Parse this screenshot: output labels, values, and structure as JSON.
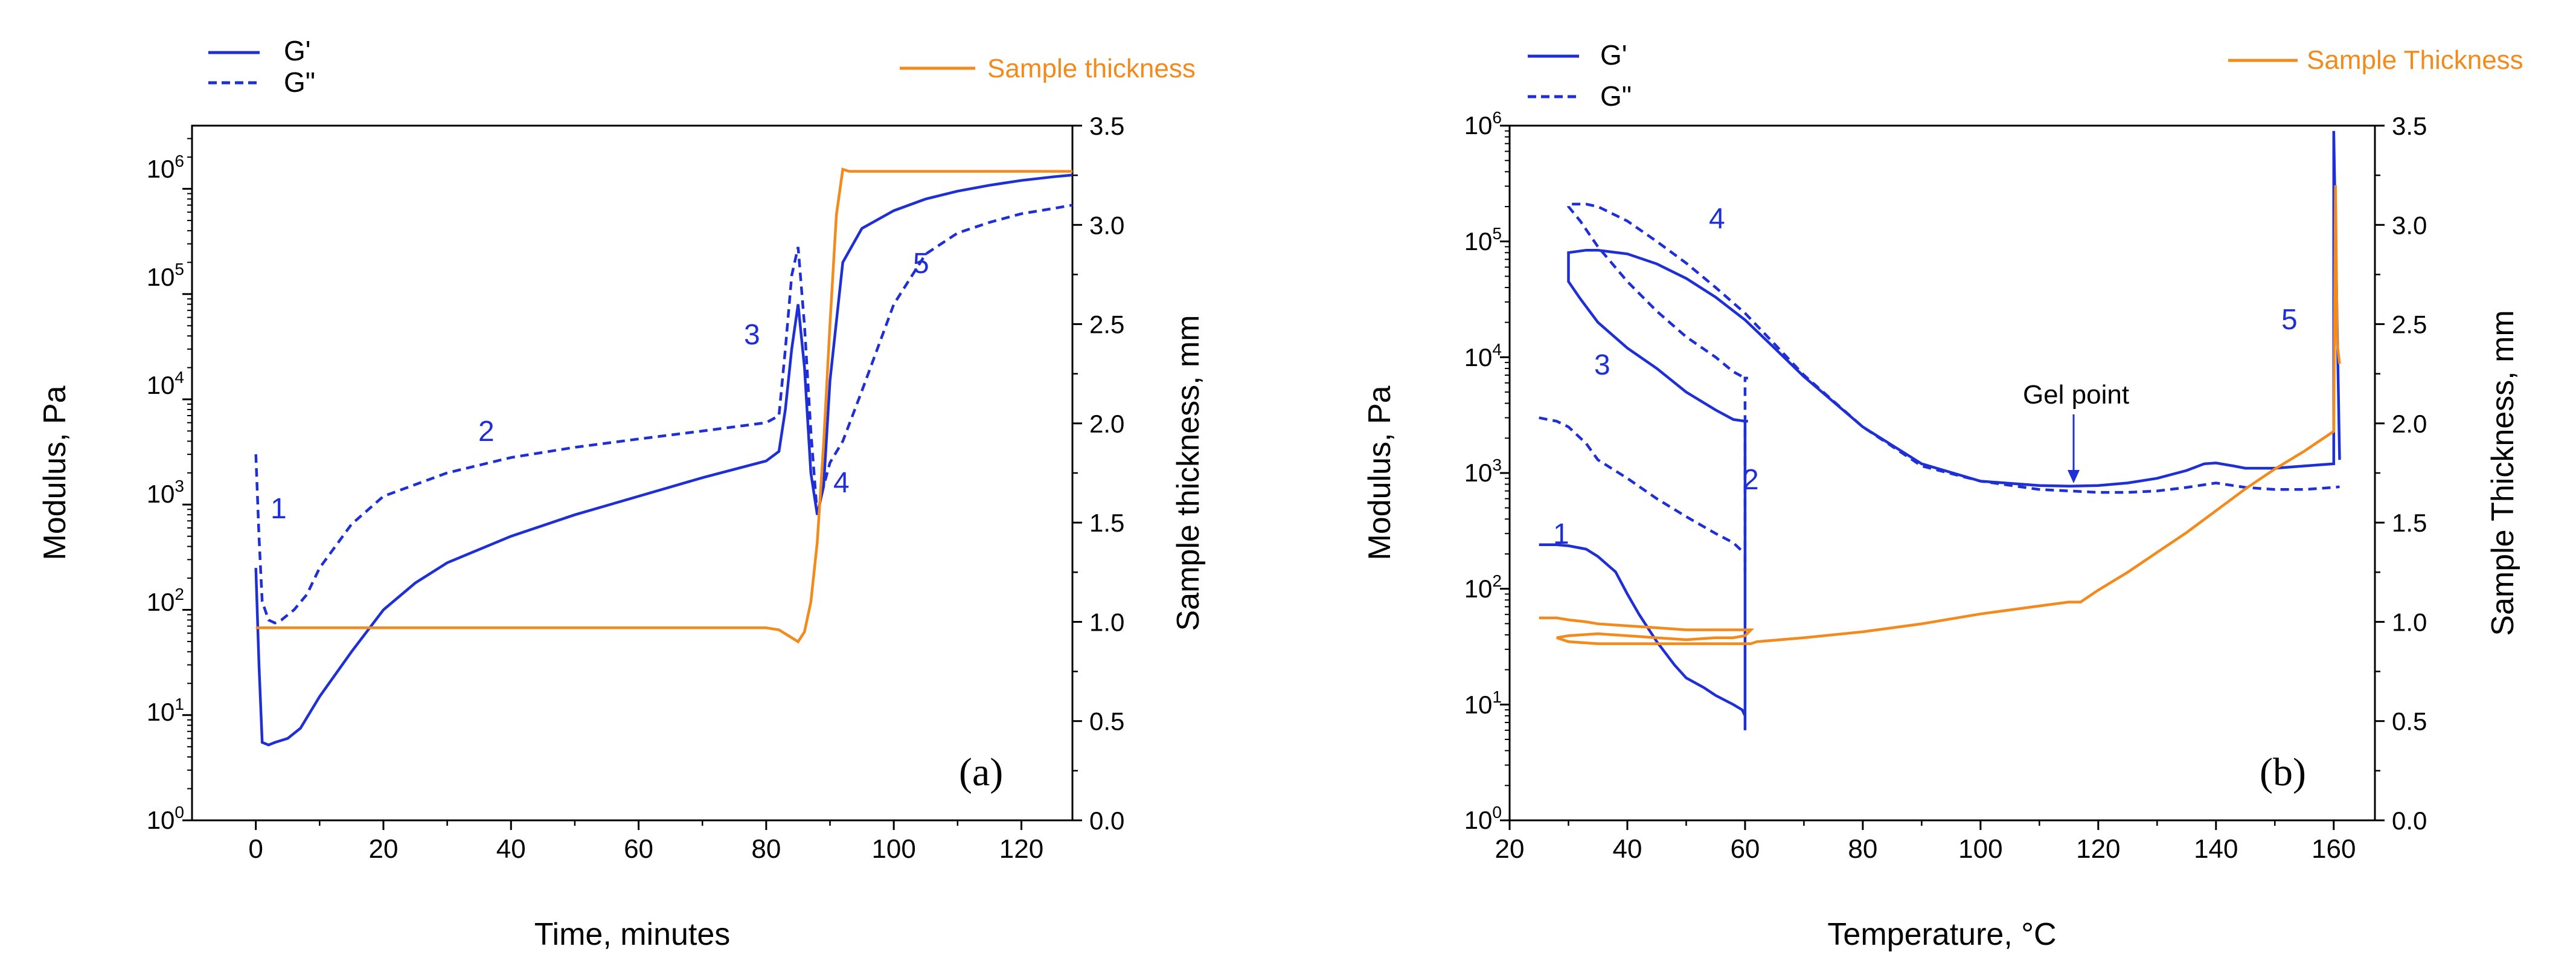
{
  "colors": {
    "gprime": "#1f2fd6",
    "sample": "#f28a1c",
    "axis": "#000000"
  },
  "chart_data": [
    {
      "type": "line",
      "panel_label": "(a)",
      "xlabel": "Time, minutes",
      "ylabel_left": "Modulus, Pa",
      "ylabel_right": "Sample thickness, mm",
      "xlim": [
        -10,
        128
      ],
      "x_ticks": [
        0,
        20,
        40,
        60,
        80,
        100,
        120
      ],
      "ylim_left_log10": [
        0,
        6.6
      ],
      "ylim_right": [
        0,
        3.5
      ],
      "y_right_ticks": [
        "0.0",
        "0.5",
        "1.0",
        "1.5",
        "2.0",
        "2.5",
        "3.0",
        "3.5"
      ],
      "legend_left": [
        "G'",
        "G\""
      ],
      "legend_right": "Sample thickness",
      "annotations": [
        "1",
        "2",
        "3",
        "4",
        "5"
      ],
      "series": [
        {
          "name": "G'",
          "axis": "left",
          "style": "solid",
          "x": [
            0,
            0.5,
            1,
            2,
            3,
            5,
            7,
            10,
            15,
            20,
            25,
            30,
            40,
            50,
            60,
            70,
            80,
            82,
            83,
            84,
            85,
            86,
            87,
            88,
            89,
            90,
            92,
            95,
            100,
            105,
            110,
            115,
            120,
            125,
            128
          ],
          "y": [
            250,
            30,
            5.5,
            5.2,
            5.5,
            6,
            7.5,
            15,
            40,
            100,
            180,
            280,
            500,
            800,
            1200,
            1800,
            2600,
            3200,
            8000,
            30000,
            80000,
            20000,
            2000,
            800,
            1500,
            15000,
            200000,
            420000,
            620000,
            800000,
            950000,
            1080000,
            1200000,
            1300000,
            1350000
          ]
        },
        {
          "name": "G\"",
          "axis": "left",
          "style": "dashed",
          "x": [
            0,
            0.5,
            1,
            2,
            3,
            4,
            6,
            8,
            10,
            15,
            20,
            30,
            40,
            50,
            60,
            70,
            80,
            82,
            83,
            84,
            85,
            86,
            87,
            88,
            89,
            90,
            92,
            95,
            100,
            105,
            110,
            115,
            120,
            125,
            128
          ],
          "y": [
            3000,
            500,
            120,
            80,
            75,
            80,
            100,
            140,
            250,
            650,
            1200,
            2000,
            2800,
            3500,
            4200,
            5000,
            6000,
            7000,
            30000,
            150000,
            280000,
            50000,
            5000,
            800,
            1500,
            2500,
            4000,
            12000,
            80000,
            240000,
            380000,
            480000,
            580000,
            650000,
            700000
          ]
        },
        {
          "name": "Sample thickness",
          "axis": "right",
          "style": "solid",
          "x": [
            0,
            10,
            20,
            40,
            60,
            70,
            80,
            82,
            84,
            85,
            86,
            87,
            88,
            89,
            90,
            91,
            92,
            93,
            95,
            100,
            110,
            120,
            128
          ],
          "y": [
            0.97,
            0.97,
            0.97,
            0.97,
            0.97,
            0.97,
            0.97,
            0.96,
            0.92,
            0.9,
            0.95,
            1.1,
            1.4,
            1.9,
            2.5,
            3.05,
            3.28,
            3.27,
            3.27,
            3.27,
            3.27,
            3.27,
            3.27
          ]
        }
      ]
    },
    {
      "type": "line",
      "panel_label": "(b)",
      "xlabel": "Temperature, °C",
      "ylabel_left": "Modulus, Pa",
      "ylabel_right": "Sample Thickness, mm",
      "xlim": [
        20,
        167
      ],
      "x_ticks": [
        20,
        40,
        60,
        80,
        100,
        120,
        140,
        160
      ],
      "ylim_left_log10": [
        0,
        6
      ],
      "ylim_right": [
        0,
        3.5
      ],
      "y_right_ticks": [
        "0.0",
        "0.5",
        "1.0",
        "1.5",
        "2.0",
        "2.5",
        "3.0",
        "3.5"
      ],
      "legend_left": [
        "G'",
        "G\""
      ],
      "legend_right": "Sample Thickness",
      "annotations": [
        "1",
        "2",
        "3",
        "4",
        "5"
      ],
      "gel_point": {
        "label": "Gel point",
        "x": 117,
        "y": 790
      },
      "series": [
        {
          "name": "G'",
          "axis": "left",
          "style": "solid",
          "x": [
            25,
            28,
            30,
            33,
            35,
            38,
            40,
            42,
            45,
            48,
            50,
            53,
            55,
            58,
            59.5,
            60,
            60,
            60,
            60.5,
            60,
            58,
            55,
            50,
            45,
            40,
            35,
            32,
            30,
            30,
            33,
            35,
            40,
            45,
            50,
            55,
            60,
            65,
            70,
            80,
            90,
            100,
            110,
            115,
            120,
            125,
            130,
            135,
            138,
            140,
            143,
            145,
            150,
            155,
            160,
            160,
            160,
            161
          ],
          "y": [
            240,
            240,
            235,
            220,
            190,
            140,
            90,
            60,
            35,
            22,
            17,
            14,
            12,
            10,
            9,
            8,
            6,
            2800,
            2800,
            2800,
            2900,
            3500,
            5000,
            8000,
            12000,
            20000,
            32000,
            45000,
            80000,
            84000,
            84000,
            78000,
            64000,
            48000,
            33000,
            21000,
            12000,
            6800,
            2500,
            1200,
            850,
            780,
            770,
            780,
            820,
            900,
            1050,
            1200,
            1220,
            1150,
            1100,
            1100,
            1150,
            1200,
            8000,
            900000,
            1300
          ]
        },
        {
          "name": "G\"",
          "axis": "left",
          "style": "dashed",
          "x": [
            25,
            28,
            30,
            33,
            35,
            40,
            45,
            50,
            55,
            58,
            60,
            60,
            60,
            60.5,
            60,
            58,
            55,
            50,
            45,
            40,
            35,
            32,
            30,
            30,
            33,
            35,
            40,
            45,
            50,
            55,
            60,
            65,
            70,
            80,
            90,
            100,
            110,
            115,
            120,
            125,
            130,
            135,
            140,
            145,
            150,
            155,
            160,
            161
          ],
          "y": [
            3000,
            2800,
            2500,
            1800,
            1300,
            900,
            600,
            420,
            300,
            250,
            200,
            140,
            6600,
            6600,
            6600,
            7500,
            10000,
            15000,
            25000,
            45000,
            90000,
            150000,
            200000,
            210000,
            210000,
            200000,
            150000,
            100000,
            65000,
            40000,
            24000,
            13000,
            7000,
            2500,
            1150,
            850,
            720,
            700,
            680,
            680,
            700,
            750,
            820,
            750,
            720,
            720,
            750,
            760
          ]
        },
        {
          "name": "Sample Thickness",
          "axis": "right",
          "style": "solid",
          "x": [
            25,
            28,
            30,
            33,
            35,
            40,
            45,
            50,
            55,
            58,
            60,
            61,
            60,
            58,
            55,
            50,
            45,
            40,
            35,
            30,
            28,
            30,
            35,
            40,
            45,
            50,
            55,
            60,
            61,
            62,
            70,
            80,
            90,
            100,
            110,
            115,
            117,
            120,
            125,
            130,
            135,
            140,
            145,
            150,
            155,
            158,
            160,
            160.3,
            160.6,
            161
          ],
          "y": [
            1.02,
            1.02,
            1.01,
            1.0,
            0.99,
            0.98,
            0.97,
            0.96,
            0.96,
            0.96,
            0.96,
            0.96,
            0.93,
            0.92,
            0.92,
            0.91,
            0.92,
            0.93,
            0.94,
            0.93,
            0.92,
            0.9,
            0.89,
            0.89,
            0.89,
            0.89,
            0.89,
            0.89,
            0.89,
            0.9,
            0.92,
            0.95,
            0.99,
            1.04,
            1.08,
            1.1,
            1.1,
            1.16,
            1.25,
            1.35,
            1.45,
            1.56,
            1.67,
            1.77,
            1.86,
            1.92,
            1.96,
            3.2,
            2.4,
            2.3
          ]
        }
      ]
    }
  ]
}
